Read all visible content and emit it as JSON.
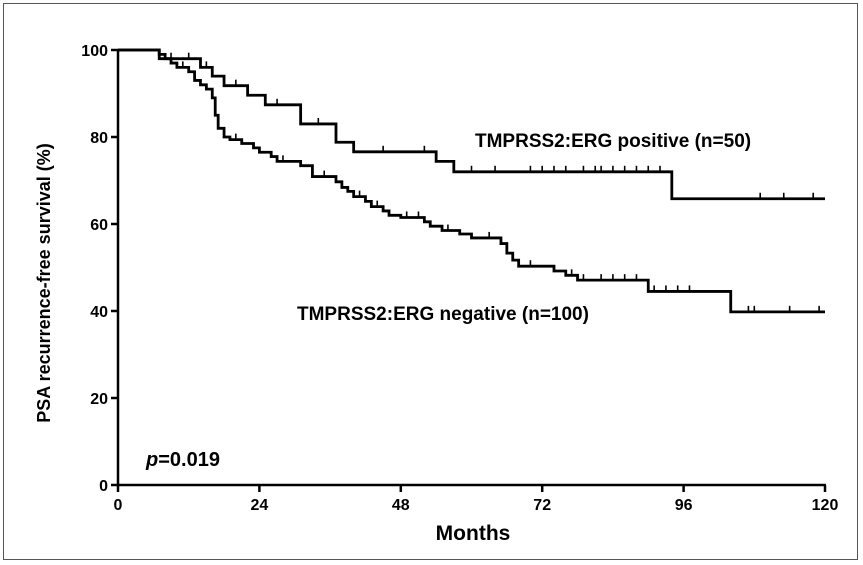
{
  "chart_data": {
    "type": "line",
    "chart_style": "kaplan-meier step",
    "xlabel": "Months",
    "ylabel": "PSA recurrence-free survival (%)",
    "xlim": [
      0,
      120
    ],
    "ylim": [
      0,
      100
    ],
    "xticks": [
      0,
      24,
      48,
      72,
      96,
      120
    ],
    "yticks": [
      0,
      20,
      40,
      60,
      80,
      100
    ],
    "grid": false,
    "line_color": "#000000",
    "annotations": [
      {
        "text": "p=0.019",
        "italic_part": "p",
        "rest": "=0.019"
      }
    ],
    "series": [
      {
        "name": "TMPRSS2:ERG positive (n=50)",
        "steps": [
          [
            0,
            100
          ],
          [
            7,
            98
          ],
          [
            14,
            96
          ],
          [
            16,
            94
          ],
          [
            18,
            91.8
          ],
          [
            22,
            89.6
          ],
          [
            25,
            87.4
          ],
          [
            31,
            83
          ],
          [
            37,
            78.8
          ],
          [
            40,
            76.6
          ],
          [
            54,
            74.4
          ],
          [
            57,
            72
          ],
          [
            94,
            65.8
          ],
          [
            120,
            65.8
          ]
        ],
        "censor_x": [
          9,
          12,
          15,
          20,
          27,
          34,
          45,
          52,
          60,
          64,
          70,
          72,
          74,
          76,
          79,
          81,
          82,
          84,
          86,
          88,
          90,
          92,
          109,
          113,
          118
        ]
      },
      {
        "name": "TMPRSS2:ERG negative (n=100)",
        "steps": [
          [
            0,
            100
          ],
          [
            7,
            99
          ],
          [
            8,
            98
          ],
          [
            9,
            97
          ],
          [
            10,
            96
          ],
          [
            12,
            95
          ],
          [
            13,
            93
          ],
          [
            14,
            92
          ],
          [
            15,
            91
          ],
          [
            16,
            89
          ],
          [
            16.5,
            85
          ],
          [
            17,
            82
          ],
          [
            18,
            80
          ],
          [
            19,
            79.4
          ],
          [
            21,
            78.5
          ],
          [
            23,
            77.5
          ],
          [
            24,
            76.5
          ],
          [
            26,
            75.5
          ],
          [
            27,
            74.4
          ],
          [
            31,
            73.4
          ],
          [
            33,
            70.9
          ],
          [
            37,
            69.7
          ],
          [
            38,
            68.4
          ],
          [
            39,
            67.5
          ],
          [
            40,
            66.3
          ],
          [
            42,
            65.2
          ],
          [
            43,
            64
          ],
          [
            45,
            63
          ],
          [
            46,
            62
          ],
          [
            48,
            61.5
          ],
          [
            52,
            60.5
          ],
          [
            53,
            59.5
          ],
          [
            55,
            58.5
          ],
          [
            58,
            57.7
          ],
          [
            60,
            56.8
          ],
          [
            65,
            55.5
          ],
          [
            66,
            53.3
          ],
          [
            67,
            51.7
          ],
          [
            68,
            50.3
          ],
          [
            72,
            50.3
          ],
          [
            74,
            49.2
          ],
          [
            76,
            48.2
          ],
          [
            78,
            47.1
          ],
          [
            80,
            47.1
          ],
          [
            90,
            44.5
          ],
          [
            104,
            39.8
          ],
          [
            120,
            39.8
          ]
        ],
        "censor_x": [
          11,
          20,
          28,
          35,
          41,
          44,
          49,
          51,
          56,
          63,
          70,
          77,
          79,
          82,
          84,
          86,
          88,
          91,
          93,
          95,
          97,
          107,
          108,
          114,
          119
        ]
      }
    ]
  }
}
